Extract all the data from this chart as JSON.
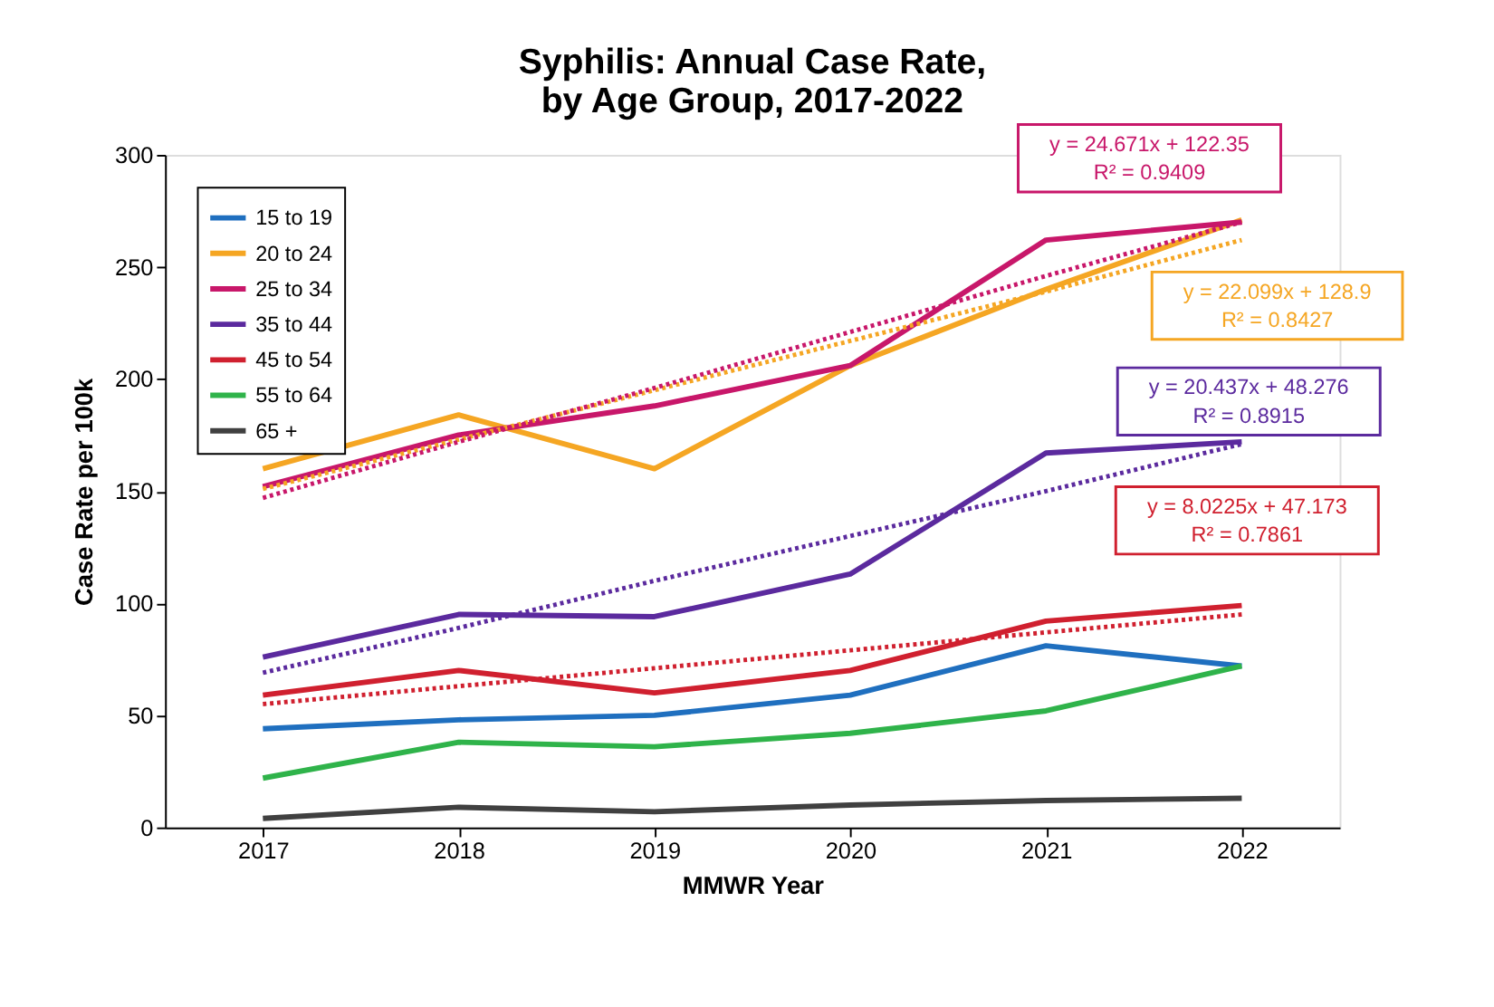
{
  "chart_data": {
    "type": "line",
    "title": [
      "Syphilis: Annual Case Rate,",
      "by Age Group, 2017-2022"
    ],
    "xlabel": "MMWR Year",
    "ylabel": "Case Rate per 100k",
    "x": [
      2017,
      2018,
      2019,
      2020,
      2021,
      2022
    ],
    "xlim": [
      2016.5,
      2022.5
    ],
    "xticks": [
      2017,
      2018,
      2019,
      2020,
      2021,
      2022
    ],
    "ylim": [
      0,
      300
    ],
    "yticks": [
      0,
      50,
      100,
      150,
      200,
      250,
      300
    ],
    "grid": false,
    "legend": "top left",
    "marker": "none",
    "series": [
      {
        "name": "15 to 19",
        "color": "#1f6fbf",
        "values": [
          44,
          48,
          50,
          59,
          81,
          72
        ]
      },
      {
        "name": "20 to 24",
        "color": "#f5a623",
        "values": [
          160,
          184,
          160,
          206,
          240,
          271
        ]
      },
      {
        "name": "25 to 34",
        "color": "#c8176a",
        "values": [
          152,
          175,
          188,
          206,
          262,
          270
        ]
      },
      {
        "name": "35 to 44",
        "color": "#5b2a9e",
        "values": [
          76,
          95,
          94,
          113,
          167,
          172
        ]
      },
      {
        "name": "45 to 54",
        "color": "#d0202f",
        "values": [
          59,
          70,
          60,
          70,
          92,
          99
        ]
      },
      {
        "name": "55 to 64",
        "color": "#2fb34a",
        "values": [
          22,
          38,
          36,
          42,
          52,
          72
        ]
      },
      {
        "name": "65 +",
        "color": "#404040",
        "values": [
          4,
          9,
          7,
          10,
          12,
          13
        ]
      },
      {
        "type": "line",
        "line_style": "dotted",
        "color": "#f5a623",
        "values": [
          151,
          173,
          195,
          217,
          239,
          262
        ]
      },
      {
        "type": "line",
        "line_style": "dotted",
        "color": "#c8176a",
        "values": [
          147,
          172,
          196,
          221,
          246,
          270
        ]
      },
      {
        "type": "line",
        "line_style": "dotted",
        "color": "#5b2a9e",
        "values": [
          69,
          89,
          110,
          130,
          150,
          171
        ]
      },
      {
        "type": "line",
        "line_style": "dotted",
        "color": "#d0202f",
        "values": [
          55,
          63,
          71,
          79,
          87,
          95
        ]
      }
    ],
    "annotations": [
      "y = 22.099x + 128.9",
      "R² = 0.8427",
      "y = 24.671x + 122.35",
      "R² = 0.9409",
      "y = 20.437x + 48.276",
      "R² = 0.8915",
      "y = 8.0225x + 47.173",
      "R² = 0.7861"
    ]
  }
}
